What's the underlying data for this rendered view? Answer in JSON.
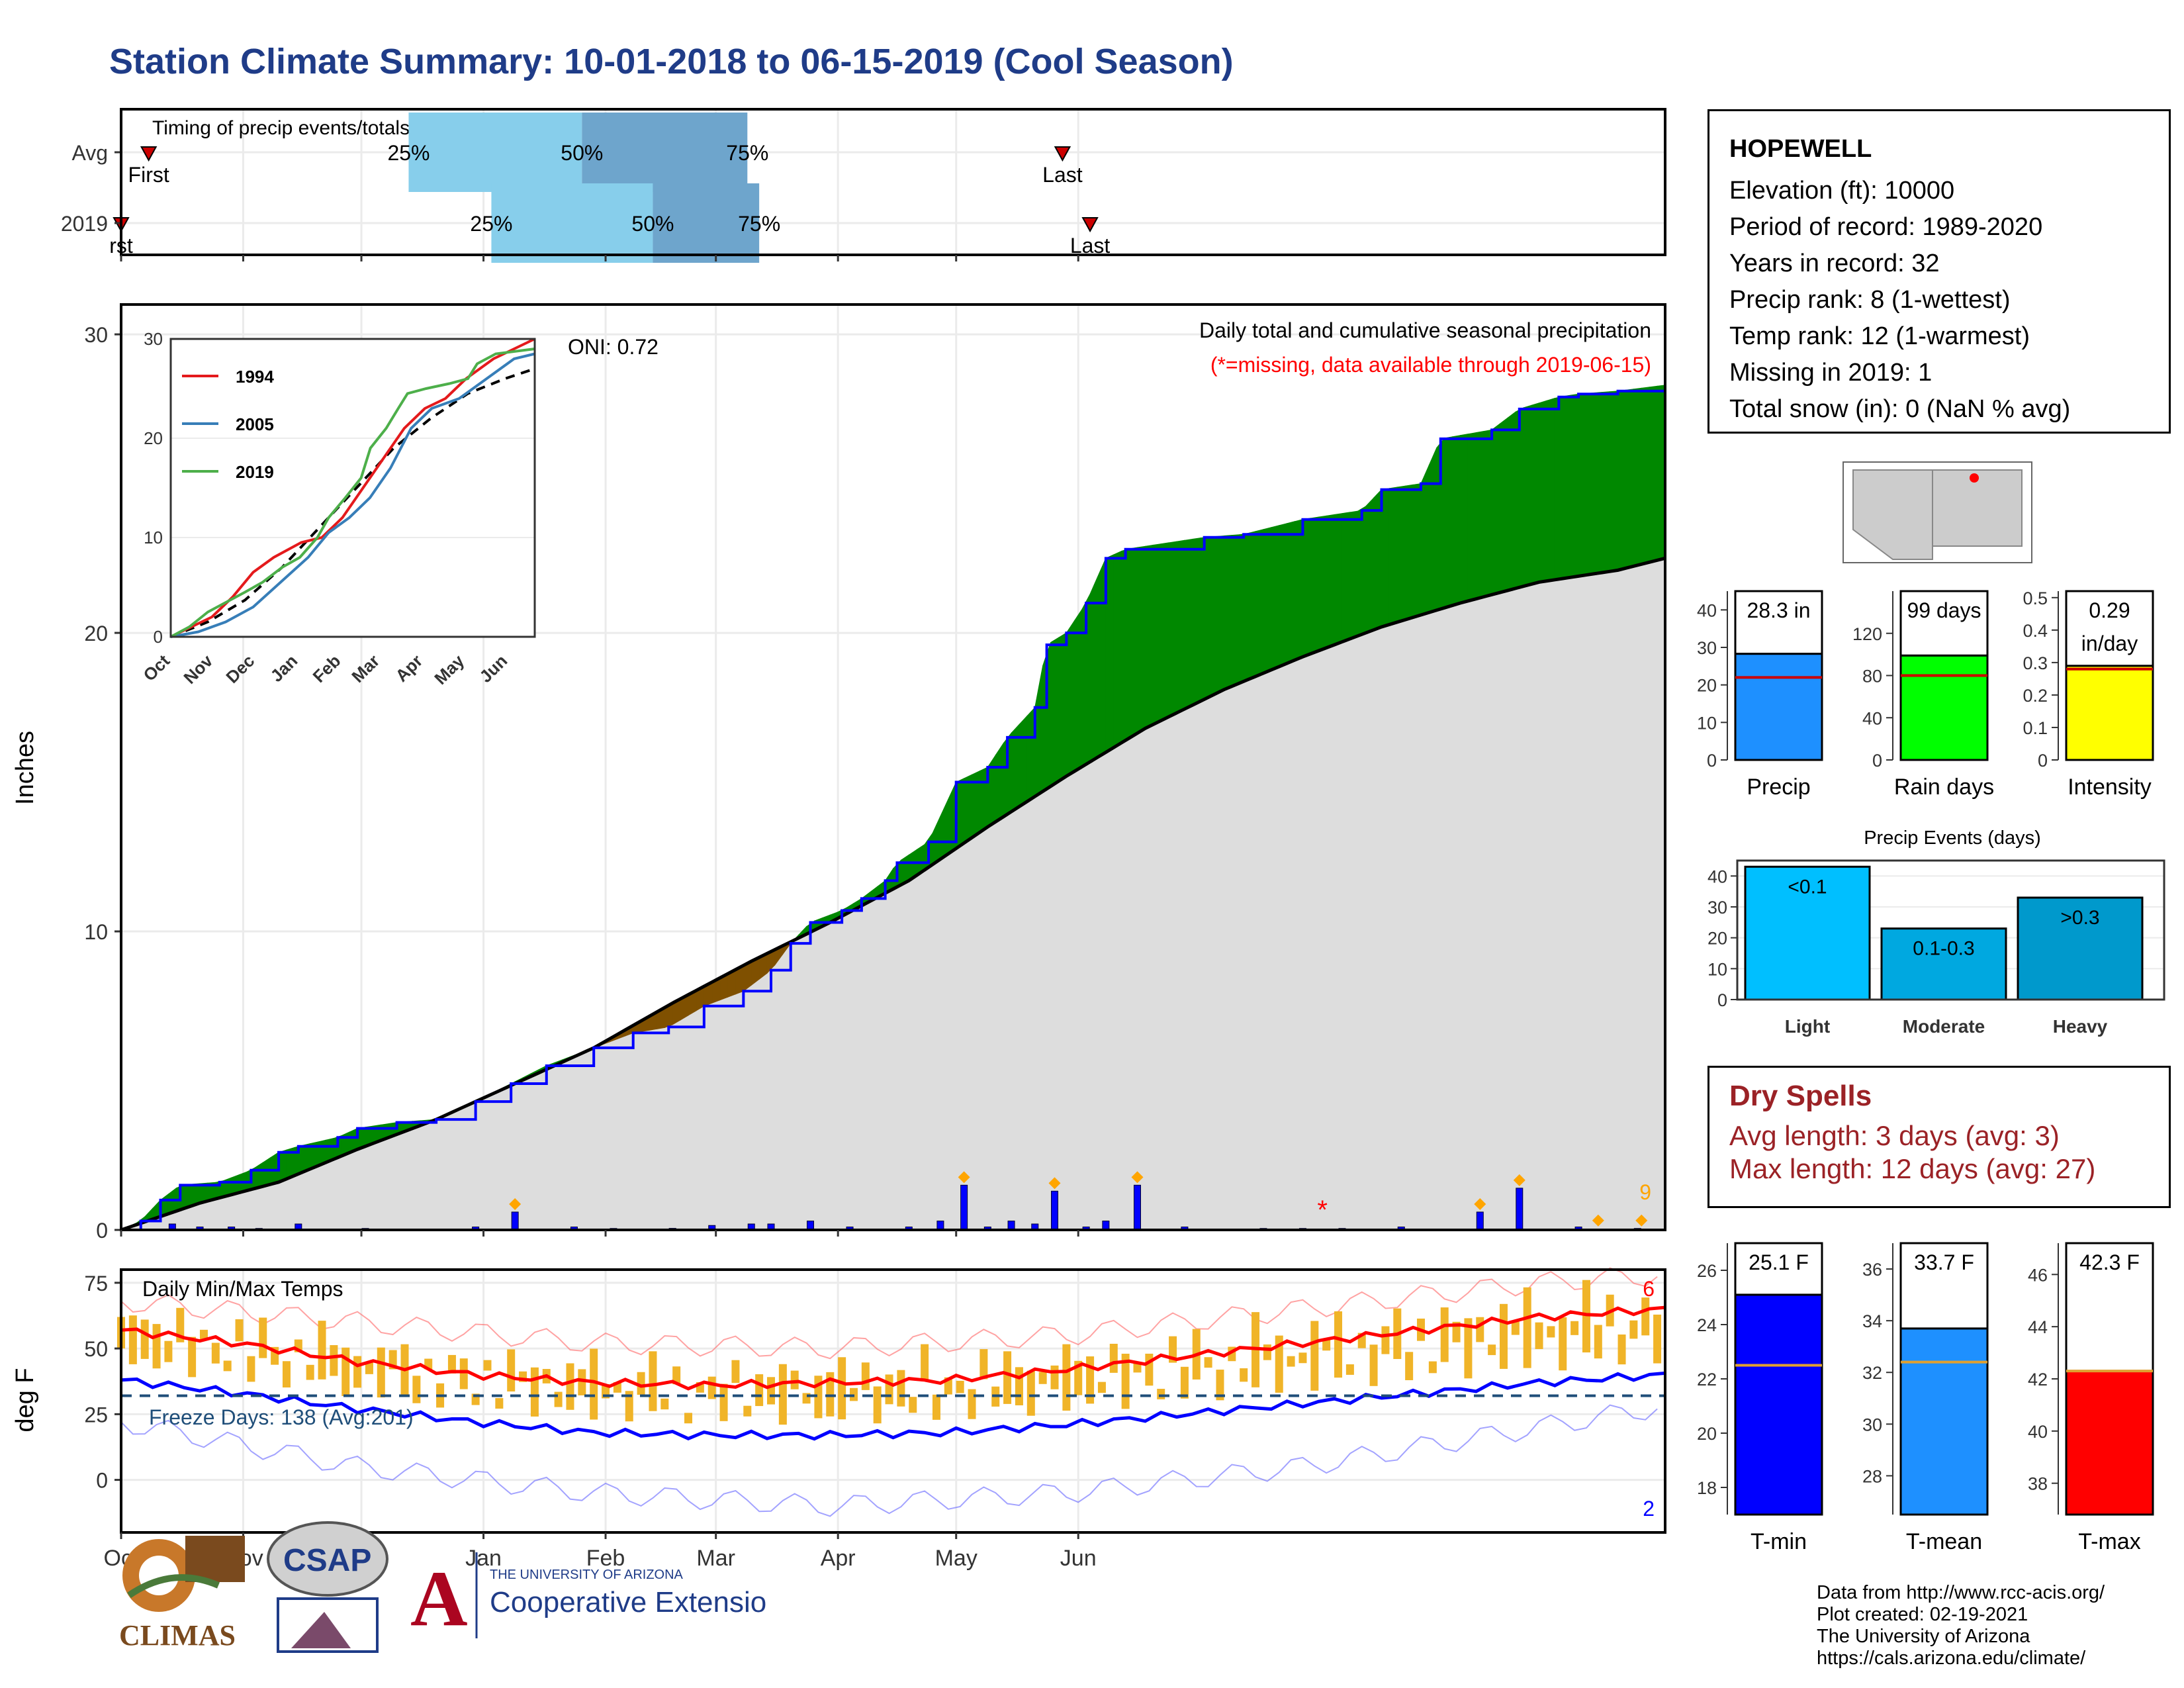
{
  "title": "Station Climate Summary: 10-01-2018 to 06-15-2019 (Cool Season)",
  "station": {
    "name": "HOPEWELL",
    "lines": [
      "Elevation (ft): 10000",
      "Period of record: 1989-2020",
      "Years in record: 32",
      "Precip rank: 8 (1-wettest)",
      "Temp rank: 12 (1-warmest)",
      "Missing in 2019: 1",
      "Total snow (in): 0 (NaN % avg)"
    ]
  },
  "dry_spells": {
    "title": "Dry Spells",
    "avg_length": "Avg length: 3 days (avg: 3)",
    "max_length": "Max length: 12 days (avg: 27)"
  },
  "credits": [
    "Data from http://www.rcc-acis.org/",
    "Plot created: 02-19-2021",
    "The University of Arizona",
    "https://cals.arizona.edu/climate/"
  ],
  "logos": {
    "climas": "CLIMAS",
    "csap": "CSAP",
    "ua_small": "THE UNIVERSITY OF ARIZONA",
    "ua_big": "Cooperative Extension"
  },
  "colors": {
    "title": "#1f3c88",
    "above_avg_fill": "#008800",
    "below_avg_fill": "#7f5000",
    "cumulative_line": "#0000ff",
    "avg_fill": "#dddddd",
    "quartile_light": "#87ceeb",
    "quartile_dark": "#6ea5cc",
    "temp_bar": "#f0b428",
    "tmax_avg": "#ff0000",
    "tmin_avg": "#0000ff"
  },
  "chart_data": [
    {
      "id": "timing",
      "type": "bar",
      "title": "Timing of precip events/totals",
      "rows": [
        {
          "label": "Avg",
          "first": "Oct 8",
          "p25": "Dec 13",
          "p50": "Jan 26",
          "p75": "Mar 9",
          "last": "May 28",
          "labels": {
            "p25": "25%",
            "p50": "50%",
            "p75": "75%",
            "first": "First",
            "last": "Last"
          }
        },
        {
          "label": "2019",
          "first": "Oct 1",
          "p25": "Jan 3",
          "p50": "Feb 13",
          "p75": "Mar 12",
          "last": "Jun 4",
          "labels": {
            "p25": "25%",
            "p50": "50%",
            "p75": "75%",
            "first": "rst",
            "last": "Last"
          }
        }
      ]
    },
    {
      "id": "cumulative_precip",
      "type": "area",
      "title": "Daily total and cumulative seasonal precipitation",
      "subtitle": "(*=missing, data available through 2019-06-15)",
      "ylabel": "Inches",
      "ylim": [
        0,
        31
      ],
      "yticks": [
        0,
        10,
        20,
        30
      ],
      "x_month_ticks": [
        "Oct",
        "Nov",
        "Dec",
        "Jan",
        "Feb",
        "Mar",
        "Apr",
        "May",
        "Jun"
      ],
      "oni_label": "ONI: 0.72",
      "count_label": "9",
      "missing_marker": "*",
      "cumulative_2019": [
        [
          0,
          0
        ],
        [
          5,
          0.3
        ],
        [
          10,
          1.0
        ],
        [
          15,
          1.5
        ],
        [
          25,
          1.6
        ],
        [
          33,
          2.0
        ],
        [
          40,
          2.6
        ],
        [
          45,
          2.8
        ],
        [
          55,
          3.1
        ],
        [
          60,
          3.4
        ],
        [
          70,
          3.6
        ],
        [
          80,
          3.7
        ],
        [
          90,
          4.3
        ],
        [
          99,
          4.9
        ],
        [
          108,
          5.5
        ],
        [
          120,
          6.1
        ],
        [
          130,
          6.6
        ],
        [
          139,
          6.8
        ],
        [
          148,
          7.5
        ],
        [
          158,
          8.0
        ],
        [
          165,
          8.7
        ],
        [
          170,
          9.6
        ],
        [
          175,
          10.3
        ],
        [
          183,
          10.7
        ],
        [
          188,
          11.1
        ],
        [
          194,
          11.7
        ],
        [
          197,
          12.3
        ],
        [
          205,
          13.0
        ],
        [
          212,
          15.0
        ],
        [
          220,
          15.5
        ],
        [
          225,
          16.5
        ],
        [
          232,
          17.5
        ],
        [
          235,
          19.6
        ],
        [
          240,
          20.0
        ],
        [
          245,
          21.0
        ],
        [
          250,
          22.5
        ],
        [
          255,
          22.8
        ],
        [
          275,
          23.2
        ],
        [
          285,
          23.3
        ],
        [
          300,
          23.8
        ],
        [
          315,
          24.1
        ],
        [
          320,
          24.8
        ],
        [
          330,
          25.0
        ],
        [
          335,
          26.5
        ],
        [
          348,
          26.8
        ],
        [
          355,
          27.5
        ],
        [
          365,
          27.9
        ],
        [
          370,
          28.0
        ],
        [
          380,
          28.1
        ],
        [
          392,
          28.3
        ]
      ],
      "cumulative_avg": [
        [
          0,
          0
        ],
        [
          20,
          0.9
        ],
        [
          40,
          1.6
        ],
        [
          60,
          2.7
        ],
        [
          80,
          3.7
        ],
        [
          100,
          4.9
        ],
        [
          120,
          6.1
        ],
        [
          140,
          7.6
        ],
        [
          160,
          9.0
        ],
        [
          180,
          10.3
        ],
        [
          200,
          11.7
        ],
        [
          220,
          13.5
        ],
        [
          240,
          15.2
        ],
        [
          260,
          16.8
        ],
        [
          280,
          18.1
        ],
        [
          300,
          19.2
        ],
        [
          320,
          20.2
        ],
        [
          340,
          21.0
        ],
        [
          360,
          21.7
        ],
        [
          380,
          22.1
        ],
        [
          392,
          22.5
        ]
      ],
      "daily_precip": [
        [
          13,
          0.2
        ],
        [
          20,
          0.1
        ],
        [
          28,
          0.1
        ],
        [
          35,
          0.05
        ],
        [
          45,
          0.2
        ],
        [
          62,
          0.05
        ],
        [
          90,
          0.1
        ],
        [
          100,
          0.6
        ],
        [
          115,
          0.1
        ],
        [
          125,
          0.05
        ],
        [
          140,
          0.05
        ],
        [
          140,
          0.05
        ],
        [
          150,
          0.15
        ],
        [
          160,
          0.2
        ],
        [
          165,
          0.2
        ],
        [
          175,
          0.3
        ],
        [
          185,
          0.1
        ],
        [
          200,
          0.1
        ],
        [
          208,
          0.3
        ],
        [
          214,
          1.5
        ],
        [
          220,
          0.1
        ],
        [
          226,
          0.3
        ],
        [
          232,
          0.2
        ],
        [
          237,
          1.3
        ],
        [
          245,
          0.1
        ],
        [
          250,
          0.3
        ],
        [
          258,
          1.5
        ],
        [
          270,
          0.1
        ],
        [
          290,
          0.05
        ],
        [
          300,
          0.05
        ],
        [
          310,
          0.05
        ],
        [
          325,
          0.1
        ],
        [
          345,
          0.6
        ],
        [
          355,
          1.4
        ],
        [
          370,
          0.1
        ],
        [
          385,
          0.05
        ]
      ],
      "heavy_markers": [
        100,
        214,
        237,
        258,
        345,
        355,
        375,
        386
      ],
      "missing_day": 305
    },
    {
      "id": "inset_cumulative",
      "type": "line",
      "ylim": [
        0,
        30
      ],
      "yticks": [
        0,
        10,
        20,
        30
      ],
      "x_month_ticks": [
        "Oct",
        "Nov",
        "Dec",
        "Jan",
        "Feb",
        "Mar",
        "Apr",
        "May",
        "Jun"
      ],
      "series": [
        {
          "name": "1994",
          "color": "#e41a1c",
          "values": [
            [
              0,
              0
            ],
            [
              15,
              1
            ],
            [
              30,
              2
            ],
            [
              45,
              4
            ],
            [
              60,
              6.5
            ],
            [
              75,
              8
            ],
            [
              95,
              9.5
            ],
            [
              110,
              10
            ],
            [
              125,
              12
            ],
            [
              140,
              15
            ],
            [
              155,
              18
            ],
            [
              170,
              21
            ],
            [
              185,
              23
            ],
            [
              200,
              24
            ],
            [
              215,
              26
            ],
            [
              235,
              28
            ],
            [
              250,
              29
            ],
            [
              265,
              30
            ]
          ]
        },
        {
          "name": "2005",
          "color": "#377eb8",
          "values": [
            [
              0,
              0
            ],
            [
              20,
              0.5
            ],
            [
              40,
              1.5
            ],
            [
              60,
              3
            ],
            [
              80,
              5.5
            ],
            [
              100,
              8
            ],
            [
              115,
              10.5
            ],
            [
              130,
              12
            ],
            [
              145,
              14
            ],
            [
              160,
              17
            ],
            [
              175,
              21
            ],
            [
              190,
              23
            ],
            [
              210,
              24
            ],
            [
              230,
              26
            ],
            [
              250,
              28
            ],
            [
              265,
              28.5
            ]
          ]
        },
        {
          "name": "2019",
          "color": "#4daf4a",
          "values": [
            [
              0,
              0
            ],
            [
              20,
              1
            ],
            [
              40,
              2.5
            ],
            [
              60,
              3.5
            ],
            [
              80,
              4.5
            ],
            [
              99,
              5.5
            ],
            [
              120,
              7
            ],
            [
              139,
              8
            ],
            [
              158,
              10
            ],
            [
              170,
              12
            ],
            [
              188,
              14
            ],
            [
              205,
              16
            ],
            [
              215,
              19
            ],
            [
              232,
              21
            ],
            [
              245,
              23
            ],
            [
              255,
              24.5
            ],
            [
              275,
              25
            ],
            [
              300,
              25.5
            ],
            [
              320,
              26
            ],
            [
              330,
              27.5
            ],
            [
              350,
              28.5
            ],
            [
              392,
              29
            ]
          ]
        }
      ],
      "avg_line": [
        [
          0,
          0
        ],
        [
          40,
          1.5
        ],
        [
          80,
          3.7
        ],
        [
          120,
          7
        ],
        [
          160,
          11
        ],
        [
          200,
          15
        ],
        [
          240,
          19
        ],
        [
          280,
          22
        ],
        [
          320,
          24.5
        ],
        [
          360,
          26
        ],
        [
          392,
          27
        ]
      ]
    },
    {
      "id": "temps",
      "type": "line",
      "title": "Daily Min/Max Temps",
      "ylabel": "deg F",
      "ylim": [
        -20,
        80
      ],
      "yticks": [
        0,
        25,
        50,
        75
      ],
      "x_month_ticks": [
        "Oct",
        "Nov",
        "Dec",
        "Jan",
        "Feb",
        "Mar",
        "Apr",
        "May",
        "Jun"
      ],
      "freeze_label": "Freeze Days: 138 (Avg:201)",
      "freeze_line": 32,
      "record_high_count": "6",
      "record_low_count": "2",
      "avg_tmax": [
        [
          0,
          57
        ],
        [
          30,
          52
        ],
        [
          60,
          45
        ],
        [
          90,
          40
        ],
        [
          120,
          37
        ],
        [
          150,
          36
        ],
        [
          180,
          37
        ],
        [
          210,
          38
        ],
        [
          240,
          42
        ],
        [
          270,
          47
        ],
        [
          300,
          52
        ],
        [
          330,
          57
        ],
        [
          360,
          62
        ],
        [
          392,
          65
        ]
      ],
      "avg_tmin": [
        [
          0,
          38
        ],
        [
          30,
          33
        ],
        [
          60,
          27
        ],
        [
          90,
          22
        ],
        [
          120,
          18
        ],
        [
          150,
          17
        ],
        [
          180,
          17
        ],
        [
          210,
          18
        ],
        [
          240,
          21
        ],
        [
          270,
          25
        ],
        [
          300,
          29
        ],
        [
          330,
          33
        ],
        [
          360,
          37
        ],
        [
          392,
          40
        ]
      ],
      "record_tmax": [
        [
          0,
          68
        ],
        [
          60,
          60
        ],
        [
          120,
          52
        ],
        [
          180,
          50
        ],
        [
          240,
          55
        ],
        [
          300,
          65
        ],
        [
          360,
          75
        ],
        [
          392,
          78
        ]
      ],
      "record_tmin": [
        [
          0,
          22
        ],
        [
          60,
          5
        ],
        [
          120,
          -5
        ],
        [
          180,
          -10
        ],
        [
          240,
          -5
        ],
        [
          300,
          5
        ],
        [
          360,
          20
        ],
        [
          392,
          28
        ]
      ]
    },
    {
      "id": "precip_bars",
      "type": "bar",
      "categories": [
        "Precip",
        "Rain days",
        "Intensity"
      ],
      "panels": [
        {
          "name": "Precip",
          "value": 28.3,
          "avg": 22.0,
          "ylim": [
            0,
            45
          ],
          "yticks": [
            0,
            10,
            20,
            30,
            40
          ],
          "label": "28.3 in",
          "color": "#1e90ff"
        },
        {
          "name": "Rain days",
          "value": 99,
          "avg": 80,
          "ylim": [
            0,
            160
          ],
          "yticks": [
            0,
            40,
            80,
            120
          ],
          "label": "99 days",
          "color": "#00ff00"
        },
        {
          "name": "Intensity",
          "value": 0.29,
          "avg": 0.28,
          "ylim": [
            0,
            0.52
          ],
          "yticks": [
            0.0,
            0.1,
            0.2,
            0.3,
            0.4,
            0.5
          ],
          "label": "0.29 in/day",
          "color": "#ffff00"
        }
      ]
    },
    {
      "id": "precip_events",
      "type": "bar",
      "title": "Precip Events (days)",
      "categories": [
        "Light",
        "Moderate",
        "Heavy"
      ],
      "bar_labels": [
        "<0.1",
        "0.1-0.3",
        ">0.3"
      ],
      "values": [
        43,
        23,
        33
      ],
      "ylim": [
        0,
        45
      ],
      "yticks": [
        0,
        10,
        20,
        30,
        40
      ],
      "colors": [
        "#00bfff",
        "#00a8e0",
        "#0099cc"
      ]
    },
    {
      "id": "temp_bars",
      "type": "bar",
      "categories": [
        "T-min",
        "T-mean",
        "T-max"
      ],
      "panels": [
        {
          "name": "T-min",
          "value": 25.1,
          "avg": 22.5,
          "ylim": [
            17,
            27
          ],
          "yticks": [
            18,
            20,
            22,
            24,
            26
          ],
          "label": "25.1 F",
          "color": "#0000ff"
        },
        {
          "name": "T-mean",
          "value": 33.7,
          "avg": 32.4,
          "ylim": [
            26.5,
            37
          ],
          "yticks": [
            28,
            30,
            32,
            34,
            36
          ],
          "label": "33.7 F",
          "color": "#1e90ff"
        },
        {
          "name": "T-max",
          "value": 42.3,
          "avg": 42.3,
          "ylim": [
            36.8,
            47.2
          ],
          "yticks": [
            38,
            40,
            42,
            44,
            46
          ],
          "label": "42.3 F",
          "color": "#ff0000"
        }
      ]
    }
  ]
}
